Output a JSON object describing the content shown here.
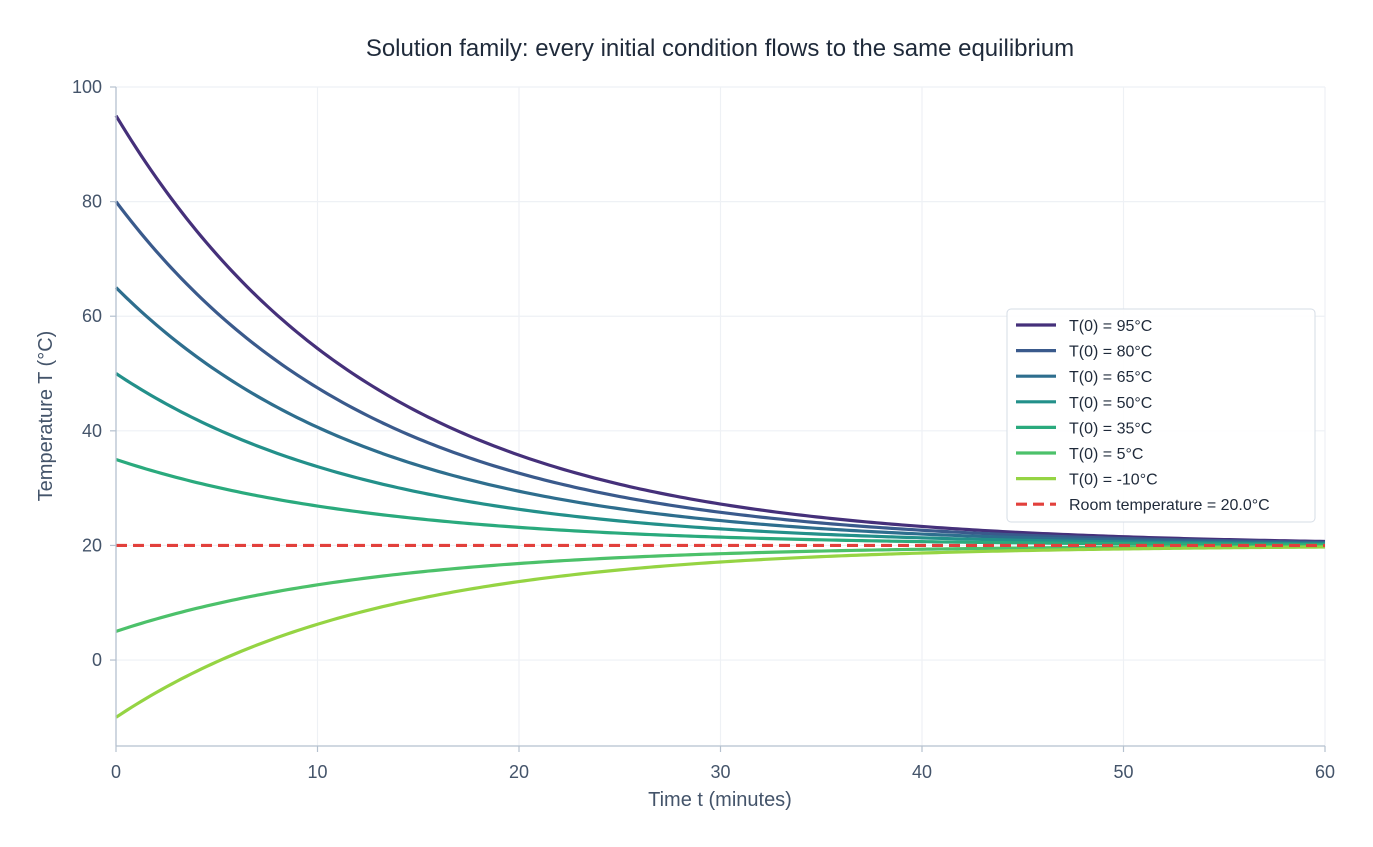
{
  "chart_data": {
    "type": "line",
    "title": "Solution family: every initial condition flows to the same equilibrium",
    "xlabel": "Time t (minutes)",
    "ylabel": "Temperature T (°C)",
    "xlim": [
      0,
      60
    ],
    "ylim": [
      -15,
      100
    ],
    "xticks": [
      0,
      10,
      20,
      30,
      40,
      50,
      60
    ],
    "yticks": [
      0,
      20,
      40,
      60,
      80,
      100
    ],
    "grid": true,
    "legend_position": "center-right",
    "model": "newton-cooling",
    "ambient": 20,
    "rate_per_minute": 0.078,
    "series": [
      {
        "name": "T(0) = 95°C",
        "initial": 95,
        "color": "#45307a"
      },
      {
        "name": "T(0) = 80°C",
        "initial": 80,
        "color": "#3a5a8c"
      },
      {
        "name": "T(0) = 65°C",
        "initial": 65,
        "color": "#2e6e8e"
      },
      {
        "name": "T(0) = 50°C",
        "initial": 50,
        "color": "#23908a"
      },
      {
        "name": "T(0) = 35°C",
        "initial": 35,
        "color": "#2aaa7d"
      },
      {
        "name": "T(0) = 5°C",
        "initial": 5,
        "color": "#4cc16a"
      },
      {
        "name": "T(0) = -10°C",
        "initial": -10,
        "color": "#95d443"
      }
    ],
    "equilibrium": {
      "name": "Room temperature = 20.0°C",
      "value": 20,
      "color": "#e2403c",
      "style": "dashed"
    }
  }
}
